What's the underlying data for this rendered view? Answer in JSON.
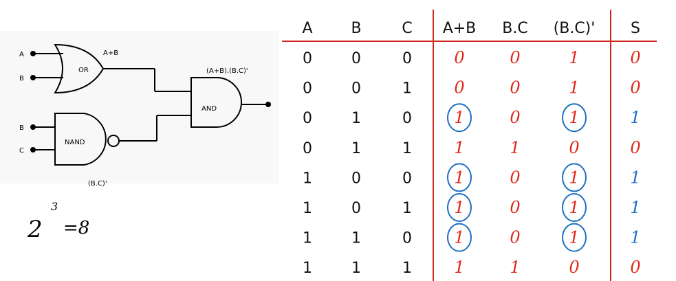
{
  "diagram": {
    "inputs": [
      "A",
      "B",
      "B",
      "C"
    ],
    "gates": [
      "OR",
      "NAND",
      "AND"
    ],
    "labels": [
      "A+B",
      "(A+B).(B.C)'",
      "(B.C)'"
    ],
    "note": {
      "base": "2",
      "exponent": "3",
      "result": "=8"
    }
  },
  "table": {
    "header": [
      "A",
      "B",
      "C",
      "A+B",
      "B.C",
      "(B.C)'",
      "S"
    ],
    "rows": [
      [
        0,
        0,
        0,
        0,
        0,
        1,
        0
      ],
      [
        0,
        0,
        1,
        0,
        0,
        1,
        0
      ],
      [
        0,
        1,
        0,
        1,
        0,
        1,
        1
      ],
      [
        0,
        1,
        1,
        1,
        1,
        0,
        0
      ],
      [
        1,
        0,
        0,
        1,
        0,
        1,
        1
      ],
      [
        1,
        0,
        1,
        1,
        0,
        1,
        1
      ],
      [
        1,
        1,
        0,
        1,
        0,
        1,
        1
      ],
      [
        1,
        1,
        1,
        1,
        1,
        0,
        0
      ]
    ]
  }
}
